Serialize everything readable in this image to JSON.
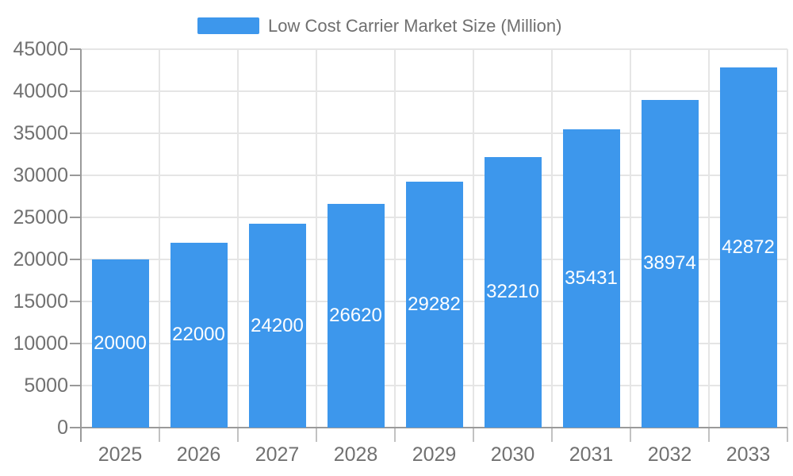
{
  "chart_data": {
    "type": "bar",
    "title": "",
    "categories": [
      "2025",
      "2026",
      "2027",
      "2028",
      "2029",
      "2030",
      "2031",
      "2032",
      "2033"
    ],
    "series": [
      {
        "name": "Low Cost Carrier Market Size (Million)",
        "values": [
          20000,
          22000,
          24200,
          26620,
          29282,
          32210,
          35431,
          38974,
          42872
        ]
      }
    ],
    "xlabel": "",
    "ylabel": "",
    "ylim": [
      0,
      45000
    ],
    "ytick_step": 5000,
    "yticks": [
      0,
      5000,
      10000,
      15000,
      20000,
      25000,
      30000,
      35000,
      40000,
      45000
    ],
    "grid": true,
    "legend_position": "top-center",
    "bar_labels_visible": true,
    "bar_label_position": "center"
  },
  "legend": {
    "label": "Low Cost Carrier Market Size (Million)"
  },
  "colors": {
    "bar": "#3D97EC",
    "bar_label": "#FFFFFF",
    "axis_line": "#9A9A9A",
    "grid_line": "#E5E5E5",
    "y_tick": "#999999",
    "x_tick": "#C2C2C2",
    "axis_text": "#717171",
    "legend_text": "#6F6F6F",
    "background": "#FFFFFF"
  }
}
